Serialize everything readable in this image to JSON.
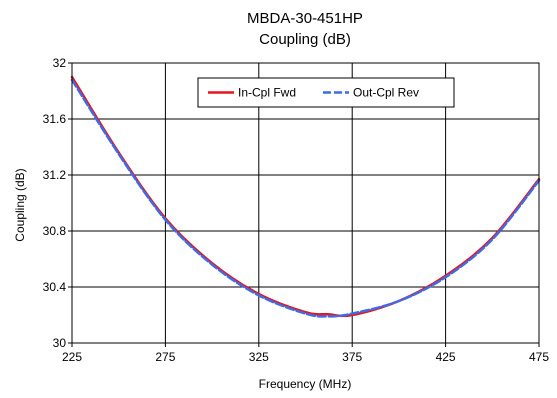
{
  "chart_data": {
    "type": "line",
    "title": "MBDA-30-451HP",
    "subtitle": "Coupling (dB)",
    "xlabel": "Frequency (MHz)",
    "ylabel": "Coupling (dB)",
    "xlim": [
      225,
      475
    ],
    "ylim": [
      30,
      32
    ],
    "x_ticks": [
      "225",
      "275",
      "325",
      "375",
      "425",
      "475"
    ],
    "y_ticks": [
      "30",
      "30.4",
      "30.8",
      "31.2",
      "31.6",
      "32"
    ],
    "grid": true,
    "legend_position": "top-right",
    "series": [
      {
        "name": "In-Cpl Fwd",
        "color": "#e8141c",
        "dash": "solid",
        "x": [
          225,
          250,
          275,
          300,
          325,
          350,
          362,
          375,
          400,
          425,
          450,
          475
        ],
        "y": [
          31.9,
          31.36,
          30.89,
          30.57,
          30.35,
          30.22,
          30.205,
          30.2,
          30.3,
          30.48,
          30.75,
          31.17
        ]
      },
      {
        "name": "Out-Cpl Rev",
        "color": "#3d6ce8",
        "dash": "dashed",
        "x": [
          225,
          250,
          275,
          300,
          325,
          350,
          362,
          375,
          400,
          425,
          450,
          475
        ],
        "y": [
          31.88,
          31.35,
          30.88,
          30.56,
          30.34,
          30.21,
          30.19,
          30.21,
          30.3,
          30.47,
          30.74,
          31.16
        ]
      }
    ]
  }
}
